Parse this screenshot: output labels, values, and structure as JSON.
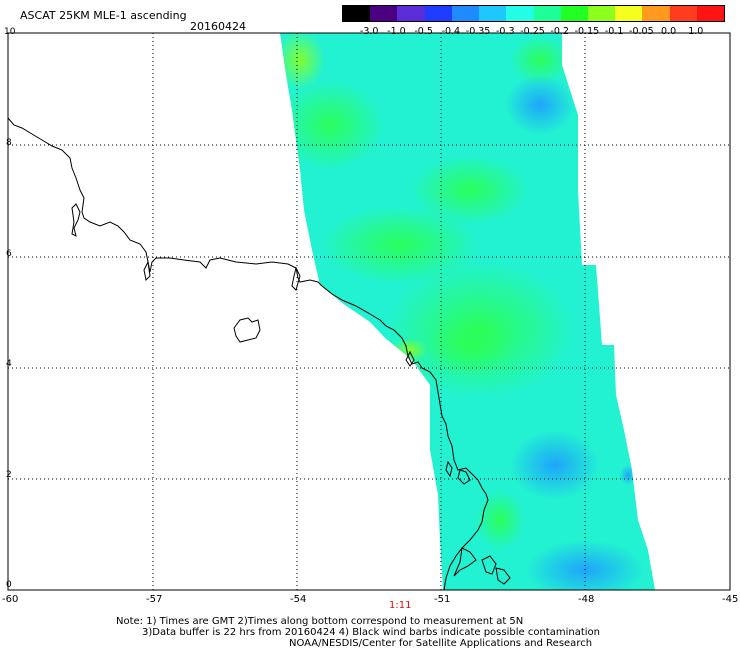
{
  "title": "ASCAT 25KM MLE-1 ascending",
  "date": "20160424",
  "colorbar": {
    "labels": [
      "-3.0",
      "-1.0",
      "-0.5",
      "-0.4",
      "-0.35",
      "-0.3",
      "-0.25",
      "-0.2",
      "-0.15",
      "-0.1",
      "-0.05",
      "0.0",
      "1.0"
    ],
    "colors": [
      "#000000",
      "#4b0082",
      "#5a2dd8",
      "#1f3cff",
      "#1e8cff",
      "#1ec8ff",
      "#22ffe6",
      "#1eff9a",
      "#22ff22",
      "#8cff1e",
      "#f5ff1e",
      "#ff9a1e",
      "#ff3c1e",
      "#ff1414"
    ]
  },
  "axes": {
    "lon_ticks": [
      "-60",
      "-57",
      "-54",
      "-51",
      "-48",
      "-45"
    ],
    "lat_ticks": [
      "0",
      "2",
      "4",
      "6",
      "8",
      "10"
    ],
    "lon_range": [
      -60,
      -45
    ],
    "lat_range": [
      0,
      10
    ]
  },
  "time_label": "1:11",
  "notes": [
    "Note: 1) Times are GMT 2)Times along bottom correspond to measurement at 5N",
    "3)Data buffer is 22 hrs from 20160424 4) Black wind barbs indicate possible contamination",
    "NOAA/NESDIS/Center for Satellite Applications and Research"
  ]
}
